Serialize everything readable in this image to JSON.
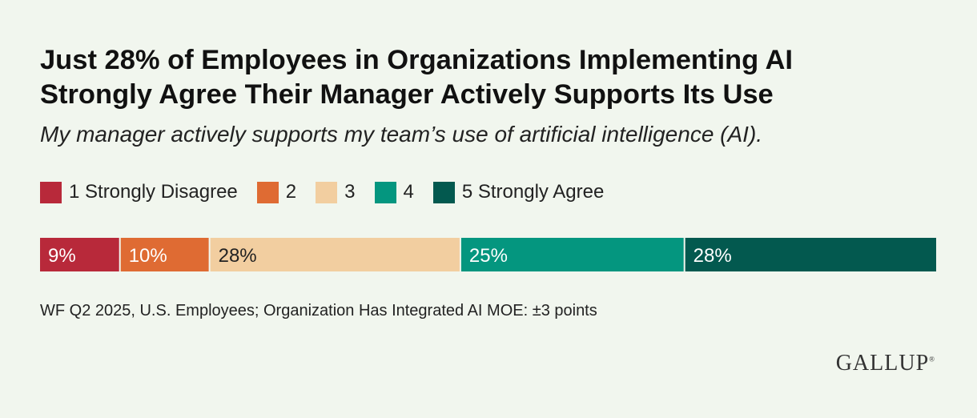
{
  "chart_data": {
    "type": "bar",
    "orientation": "horizontal-stacked-100",
    "title_lines": [
      "Just 28% of Employees in Organizations Implementing AI",
      "Strongly Agree Their Manager Actively Supports Its Use"
    ],
    "subtitle": "My manager actively supports my team’s use of artificial intelligence (AI).",
    "legend_placement": "top",
    "series": [
      {
        "name": "1 Strongly Disagree",
        "value": 9,
        "label": "9%",
        "color": "#b8293a"
      },
      {
        "name": "2",
        "value": 10,
        "label": "10%",
        "color": "#df6b33"
      },
      {
        "name": "3",
        "value": 28,
        "label": "28%",
        "color": "#f2cea0"
      },
      {
        "name": "4",
        "value": 25,
        "label": "25%",
        "color": "#04967f"
      },
      {
        "name": "5 Strongly Agree",
        "value": 28,
        "label": "28%",
        "color": "#03594f"
      }
    ],
    "xlim": [
      0,
      100
    ],
    "grid": false,
    "footnote": "WF Q2 2025, U.S. Employees; Organization Has Integrated AI MOE: ±3 points"
  },
  "brand": {
    "logo_text": "GALLUP",
    "logo_mark": "®"
  },
  "colors": {
    "background": "#f1f6ee",
    "divider": "#ffffff"
  }
}
